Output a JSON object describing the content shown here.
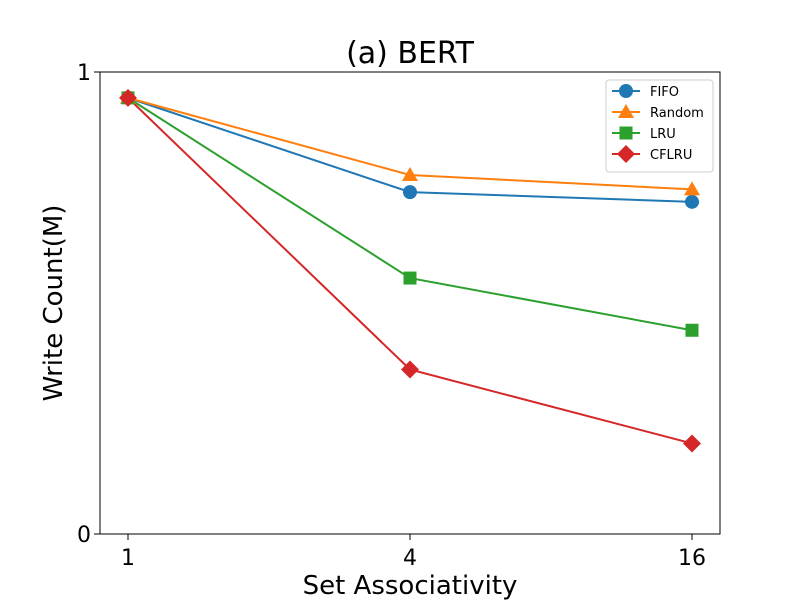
{
  "chart_data": {
    "type": "line",
    "title": "(a) BERT",
    "xlabel": "Set Associativity",
    "ylabel": "Write Count(M)",
    "categories": [
      "1",
      "4",
      "16"
    ],
    "ylim": [
      0,
      1
    ],
    "yticks": [
      "0",
      "1"
    ],
    "legend_position": "top-right",
    "grid": false,
    "series": [
      {
        "name": "FIFO",
        "color": "#1f77b4",
        "marker": "circle",
        "values": [
          0.944,
          0.74,
          0.719
        ]
      },
      {
        "name": "Random",
        "color": "#ff7f0e",
        "marker": "triangle",
        "values": [
          0.944,
          0.777,
          0.746
        ]
      },
      {
        "name": "LRU",
        "color": "#2ca02c",
        "marker": "square",
        "values": [
          0.944,
          0.554,
          0.441
        ]
      },
      {
        "name": "CFLRU",
        "color": "#d62728",
        "marker": "diamond",
        "values": [
          0.944,
          0.356,
          0.196
        ]
      }
    ]
  }
}
